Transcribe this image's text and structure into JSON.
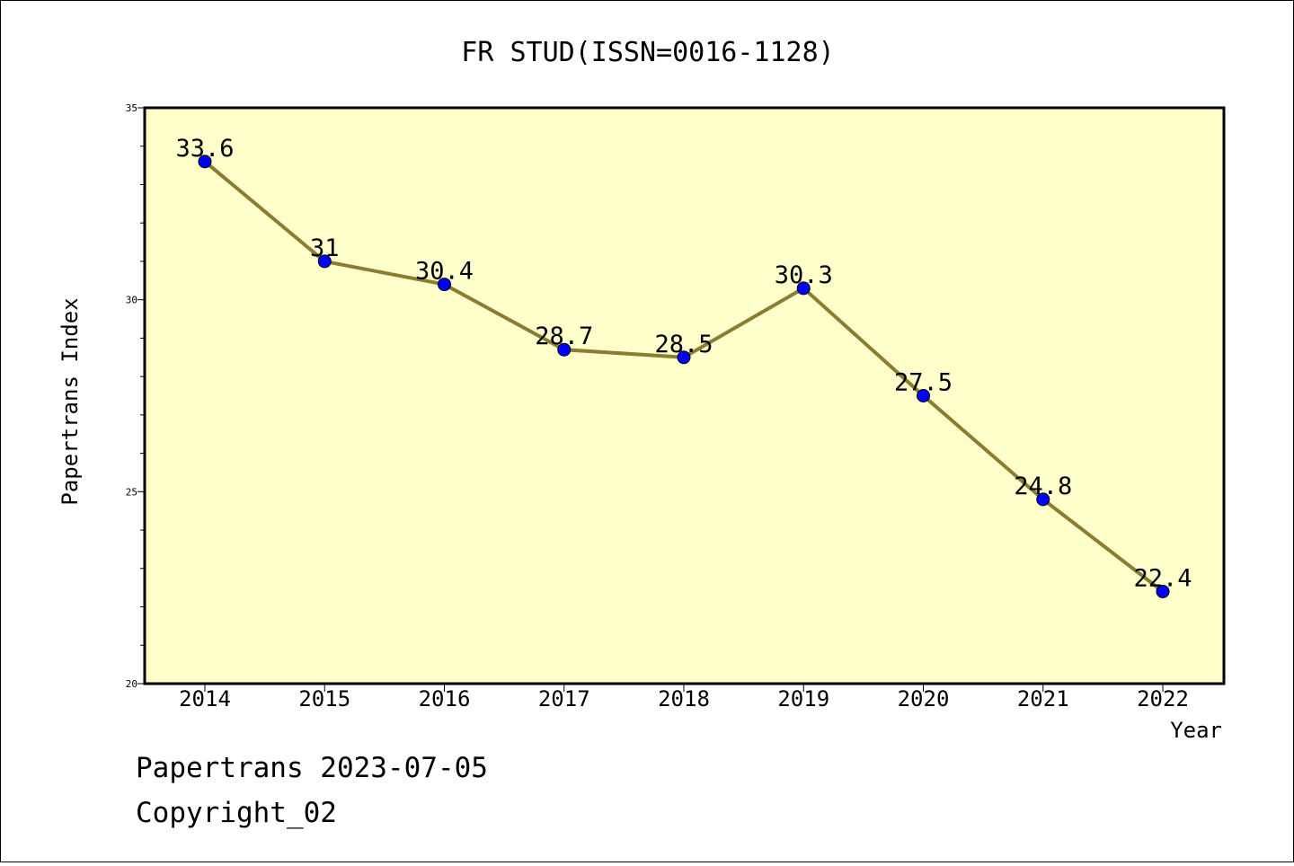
{
  "chart_data": {
    "type": "line",
    "title": "FR STUD(ISSN=0016-1128)",
    "xlabel": "Year",
    "ylabel": "Papertrans Index",
    "categories": [
      "2014",
      "2015",
      "2016",
      "2017",
      "2018",
      "2019",
      "2020",
      "2021",
      "2022"
    ],
    "series": [
      {
        "values": [
          33.6,
          31,
          30.4,
          28.7,
          28.5,
          30.3,
          27.5,
          24.8,
          22.4
        ],
        "data_labels": [
          "33.6",
          "31",
          "30.4",
          "28.7",
          "28.5",
          "30.3",
          "27.5",
          "24.8",
          "22.4"
        ]
      }
    ],
    "ylim": [
      20,
      35
    ],
    "yticks": [
      "20",
      "25",
      "30",
      "35"
    ],
    "grid": false,
    "colors": {
      "plot_background": "#ffffcc",
      "line": "#8b7d2f",
      "marker": "#0000ff"
    }
  },
  "footer": {
    "line1": "Papertrans 2023-07-05",
    "line2": "Copyright_02"
  }
}
